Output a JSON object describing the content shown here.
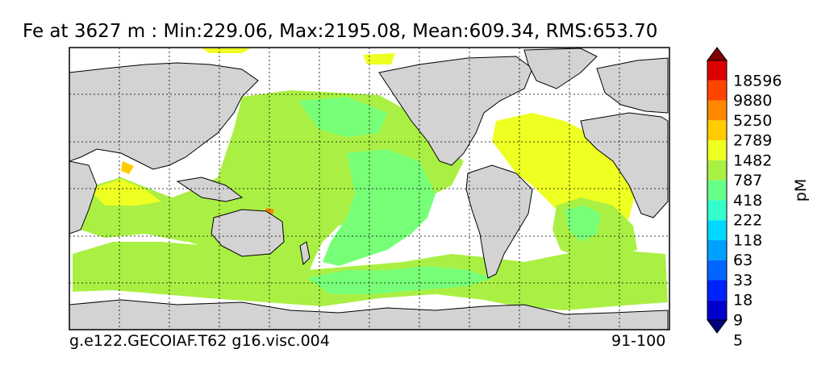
{
  "map": {
    "title": "Fe at 3627 m : Min:229.06, Max:2195.08, Mean:609.34, RMS:653.70",
    "case_name": "g.e122.GECOIAF.T62 g16.visc.004",
    "years": "91-100",
    "variable": "Fe",
    "depth": "3627 m",
    "stats": {
      "min": 229.06,
      "max": 2195.08,
      "mean": 609.34,
      "rms": 653.7
    },
    "projection": "global lon/lat, Pacific-centered",
    "grid": "dotted graticule",
    "land_color": "#d3d3d3",
    "missing_color": "#ffffff"
  },
  "colorbar": {
    "units": "pM",
    "levels": [
      "18596",
      "9880",
      "5250",
      "2789",
      "1482",
      "787",
      "418",
      "222",
      "118",
      "63",
      "33",
      "18",
      "9",
      "5"
    ],
    "colors": [
      "#000080",
      "#0000cd",
      "#0022ff",
      "#0066ff",
      "#00a0ff",
      "#00d8ff",
      "#33ffcc",
      "#66ff88",
      "#aaf044",
      "#eeff22",
      "#ffcc00",
      "#ff8800",
      "#ff4400",
      "#dd0000",
      "#800000"
    ],
    "extend": "both"
  }
}
